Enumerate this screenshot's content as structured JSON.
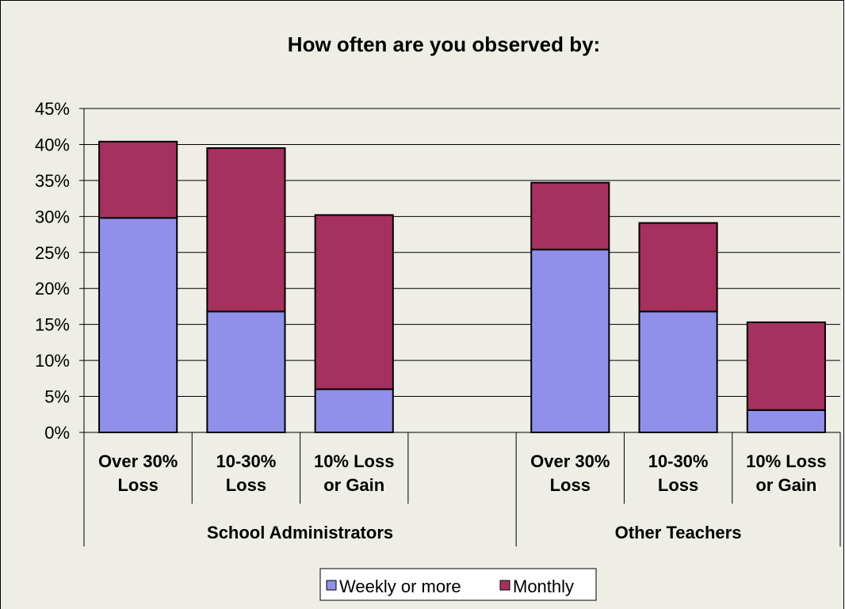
{
  "chart_data": {
    "type": "bar",
    "stacked": true,
    "title": "How often are you observed by:",
    "xlabel": "",
    "ylabel": "",
    "ylim": [
      0,
      0.45
    ],
    "yticks": [
      "0%",
      "5%",
      "10%",
      "15%",
      "20%",
      "25%",
      "30%",
      "35%",
      "40%",
      "45%"
    ],
    "grid": true,
    "legend": "bottom",
    "groups": [
      {
        "label": "School Administrators",
        "categories": [
          [
            "Over 30%",
            "Loss"
          ],
          [
            "10-30%",
            "Loss"
          ],
          [
            "10% Loss",
            "or Gain"
          ],
          [
            "",
            ""
          ]
        ]
      },
      {
        "label": "Other Teachers",
        "categories": [
          [
            "Over 30%",
            "Loss"
          ],
          [
            "10-30%",
            "Loss"
          ],
          [
            "10% Loss",
            "or Gain"
          ]
        ]
      }
    ],
    "series": [
      {
        "name": "Weekly or more",
        "color": "#9090ea",
        "values": [
          0.298,
          0.168,
          0.06,
          null,
          0.254,
          0.168,
          0.031
        ]
      },
      {
        "name": "Monthly",
        "color": "#a6305e",
        "values": [
          0.106,
          0.227,
          0.242,
          null,
          0.093,
          0.123,
          0.122
        ]
      }
    ],
    "colors": {
      "plot_background": "#eeeee6",
      "bar_outline": "#000000",
      "gridline": "#000000"
    }
  }
}
